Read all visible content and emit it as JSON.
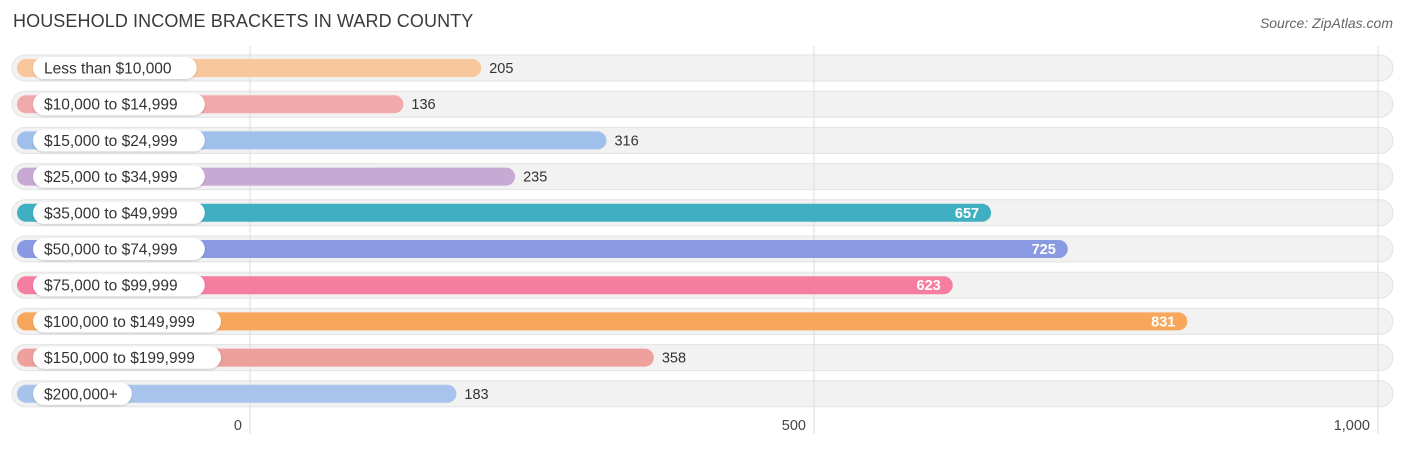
{
  "title": "HOUSEHOLD INCOME BRACKETS IN WARD COUNTY",
  "source": "Source: ZipAtlas.com",
  "chart_data": {
    "type": "bar",
    "orientation": "horizontal",
    "title": "HOUSEHOLD INCOME BRACKETS IN WARD COUNTY",
    "categories": [
      "Less than $10,000",
      "$10,000 to $14,999",
      "$15,000 to $24,999",
      "$25,000 to $34,999",
      "$35,000 to $49,999",
      "$50,000 to $74,999",
      "$75,000 to $99,999",
      "$100,000 to $149,999",
      "$150,000 to $199,999",
      "$200,000+"
    ],
    "values": [
      205,
      136,
      316,
      235,
      657,
      725,
      623,
      831,
      358,
      183
    ],
    "value_labels": [
      "205",
      "136",
      "316",
      "235",
      "657",
      "725",
      "623",
      "831",
      "358",
      "183"
    ],
    "colors": [
      "#f9c79c",
      "#f2a9a9",
      "#9fc0ea",
      "#c8a9d4",
      "#40afc2",
      "#8a9ae2",
      "#f57ea0",
      "#f8a65c",
      "#eea09c",
      "#a8c4ec"
    ],
    "xlim": [
      0,
      1000
    ],
    "xticks": [
      0,
      500,
      1000
    ],
    "xtick_labels": [
      "0",
      "500",
      "1,000"
    ],
    "grid": true,
    "xlabel": "",
    "ylabel": ""
  }
}
